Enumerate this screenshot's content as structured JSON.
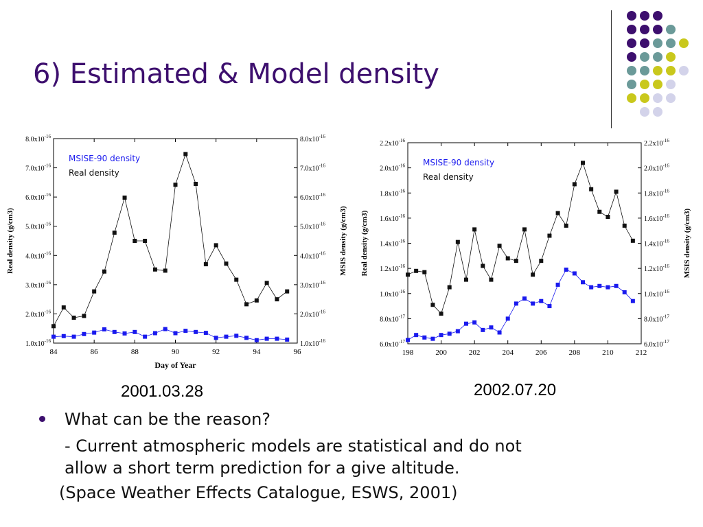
{
  "slide": {
    "title": "6) Estimated & Model density",
    "caption_left": "2001.03.28",
    "caption_right": "2002.07.20",
    "bullet": "What can be the reason?",
    "sub_line1": "- Current atmospheric models are statistical and do not",
    "sub_line2": "allow a short term prediction for a give altitude.",
    "citation": "(Space Weather Effects Catalogue, ESWS, 2001)"
  },
  "colors": {
    "title": "#3d0f6e",
    "dot_purple": "#3d0f6e",
    "dot_teal": "#6b9a99",
    "dot_yellow": "#c9c81c",
    "dot_lavender": "#d3d3ea",
    "model_series": "#1a1aee",
    "real_series": "#111111"
  },
  "decoration": {
    "dot_rows": [
      [
        "purple",
        "purple",
        "purple"
      ],
      [
        "purple",
        "purple",
        "purple",
        "teal"
      ],
      [
        "purple",
        "purple",
        "teal",
        "teal",
        "yellow"
      ],
      [
        "purple",
        "teal",
        "teal",
        "yellow"
      ],
      [
        "teal",
        "teal",
        "yellow",
        "yellow",
        "lavender"
      ],
      [
        "teal",
        "yellow",
        "yellow",
        "lavender"
      ],
      [
        "yellow",
        "yellow",
        "lavender",
        "lavender"
      ],
      [
        "lavender",
        "lavender"
      ]
    ]
  },
  "chart_data": [
    {
      "type": "line",
      "xlabel": "Day of Year",
      "ylabel": "Real density (g/cm3)",
      "ylabel_right": "MSIS density (g/cm3)",
      "xlim": [
        84,
        96
      ],
      "ylim": [
        1.0,
        8.0
      ],
      "x_ticks": [
        "84",
        "86",
        "88",
        "90",
        "92",
        "94",
        "96"
      ],
      "y_ticks": [
        {
          "m": "1.0x10",
          "e": "-16"
        },
        {
          "m": "2.0x10",
          "e": "-16"
        },
        {
          "m": "3.0x10",
          "e": "-16"
        },
        {
          "m": "4.0x10",
          "e": "-16"
        },
        {
          "m": "5.0x10",
          "e": "-16"
        },
        {
          "m": "6.0x10",
          "e": "-16"
        },
        {
          "m": "7.0x10",
          "e": "-16"
        },
        {
          "m": "8.0x10",
          "e": "-16"
        }
      ],
      "legend": [
        "MSISE-90 density",
        "Real density"
      ],
      "legend_position": "top-left",
      "series": [
        {
          "name": "Real density",
          "color": "#111111",
          "x": [
            84.0,
            84.5,
            85.0,
            85.5,
            86.0,
            86.5,
            87.0,
            87.5,
            88.0,
            88.5,
            89.0,
            89.5,
            90.0,
            90.5,
            91.0,
            91.5,
            92.0,
            92.5,
            93.0,
            93.5,
            94.0,
            94.5,
            95.0,
            95.5
          ],
          "y": [
            1.58,
            2.22,
            1.87,
            1.93,
            2.77,
            3.45,
            4.78,
            5.98,
            4.5,
            4.5,
            3.52,
            3.48,
            6.42,
            7.47,
            6.45,
            3.7,
            4.35,
            3.72,
            3.17,
            2.33,
            2.46,
            3.06,
            2.5,
            2.77
          ]
        },
        {
          "name": "MSISE-90 density",
          "color": "#1a1aee",
          "x": [
            84.0,
            84.5,
            85.0,
            85.5,
            86.0,
            86.5,
            87.0,
            87.5,
            88.0,
            88.5,
            89.0,
            89.5,
            90.0,
            90.5,
            91.0,
            91.5,
            92.0,
            92.5,
            93.0,
            93.5,
            94.0,
            94.5,
            95.0,
            95.5
          ],
          "y": [
            1.22,
            1.24,
            1.22,
            1.31,
            1.36,
            1.47,
            1.38,
            1.33,
            1.38,
            1.22,
            1.34,
            1.48,
            1.34,
            1.42,
            1.38,
            1.35,
            1.18,
            1.22,
            1.25,
            1.18,
            1.1,
            1.15,
            1.15,
            1.12
          ]
        }
      ]
    },
    {
      "type": "line",
      "xlabel": "",
      "ylabel": "Real density (g/cm3)",
      "ylabel_right": "MSIS density (g/cm3)",
      "xlim": [
        198,
        212
      ],
      "ylim": [
        0.6,
        2.2
      ],
      "x_ticks": [
        "198",
        "200",
        "202",
        "204",
        "206",
        "208",
        "210",
        "212"
      ],
      "y_ticks": [
        {
          "m": "6.0x10",
          "e": "-17"
        },
        {
          "m": "8.0x10",
          "e": "-17"
        },
        {
          "m": "1.0x10",
          "e": "-16"
        },
        {
          "m": "1.2x10",
          "e": "-16"
        },
        {
          "m": "1.4x10",
          "e": "-16"
        },
        {
          "m": "1.6x10",
          "e": "-16"
        },
        {
          "m": "1.8x10",
          "e": "-16"
        },
        {
          "m": "2.0x10",
          "e": "-16"
        },
        {
          "m": "2.2x10",
          "e": "-16"
        }
      ],
      "legend": [
        "MSISE-90 density",
        "Real density"
      ],
      "legend_position": "top-left",
      "series": [
        {
          "name": "Real density",
          "color": "#111111",
          "x": [
            198.0,
            198.5,
            199.0,
            199.5,
            200.0,
            200.5,
            201.0,
            201.5,
            202.0,
            202.5,
            203.0,
            203.5,
            204.0,
            204.5,
            205.0,
            205.5,
            206.0,
            206.5,
            207.0,
            207.5,
            208.0,
            208.5,
            209.0,
            209.5,
            210.0,
            210.5,
            211.0,
            211.5
          ],
          "y": [
            1.15,
            1.18,
            1.17,
            0.91,
            0.84,
            1.05,
            1.41,
            1.11,
            1.51,
            1.22,
            1.11,
            1.38,
            1.28,
            1.26,
            1.51,
            1.15,
            1.26,
            1.46,
            1.64,
            1.54,
            1.87,
            2.04,
            1.83,
            1.65,
            1.61,
            1.81,
            1.54,
            1.42
          ]
        },
        {
          "name": "MSISE-90 density",
          "color": "#1a1aee",
          "x": [
            198.0,
            198.5,
            199.0,
            199.5,
            200.0,
            200.5,
            201.0,
            201.5,
            202.0,
            202.5,
            203.0,
            203.5,
            204.0,
            204.5,
            205.0,
            205.5,
            206.0,
            206.5,
            207.0,
            207.5,
            208.0,
            208.5,
            209.0,
            209.5,
            210.0,
            210.5,
            211.0,
            211.5
          ],
          "y": [
            0.63,
            0.67,
            0.65,
            0.64,
            0.67,
            0.68,
            0.7,
            0.76,
            0.77,
            0.71,
            0.73,
            0.69,
            0.8,
            0.92,
            0.96,
            0.92,
            0.94,
            0.9,
            1.07,
            1.19,
            1.16,
            1.09,
            1.05,
            1.06,
            1.05,
            1.06,
            1.01,
            0.94
          ]
        }
      ]
    }
  ]
}
